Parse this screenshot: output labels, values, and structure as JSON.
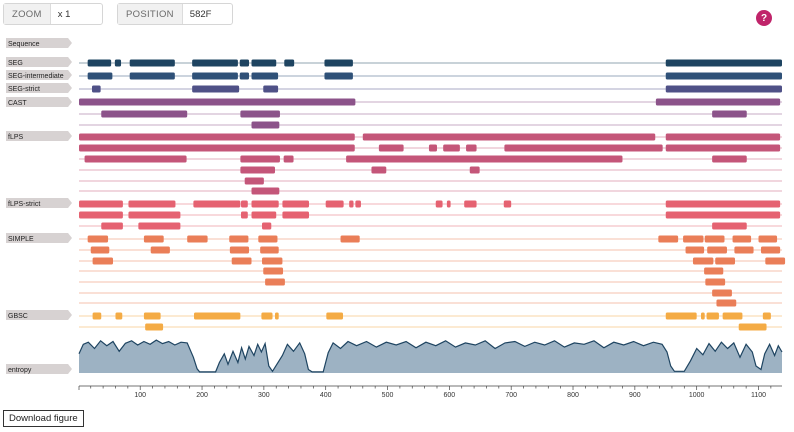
{
  "controls": {
    "zoom": {
      "label": "ZOOM",
      "value": "x 1"
    },
    "position": {
      "label": "POSITION",
      "value": "582F"
    }
  },
  "help": {
    "label": "?"
  },
  "download": {
    "label": "Download figure"
  },
  "axis": {
    "min": 1,
    "max": 1138,
    "ticks": [
      100,
      200,
      300,
      400,
      500,
      600,
      700,
      800,
      900,
      1000,
      1100
    ]
  },
  "tracks": [
    {
      "label": "Sequence",
      "rows": []
    },
    {
      "label": "SEG",
      "color": "#1e4461",
      "rows": [
        [
          [
            15,
            53
          ],
          [
            59,
            69
          ],
          [
            83,
            156
          ],
          [
            184,
            258
          ],
          [
            261,
            276
          ],
          [
            280,
            320
          ],
          [
            333,
            349
          ],
          [
            398,
            444
          ],
          [
            950,
            1138
          ]
        ]
      ]
    },
    {
      "label": "SEG-intermediate",
      "color": "#2f5178",
      "rows": [
        [
          [
            15,
            55
          ],
          [
            83,
            156
          ],
          [
            184,
            258
          ],
          [
            261,
            276
          ],
          [
            280,
            323
          ],
          [
            398,
            444
          ],
          [
            950,
            1138
          ]
        ]
      ]
    },
    {
      "label": "SEG-strict",
      "color": "#4f5187",
      "rows": [
        [
          [
            22,
            36
          ],
          [
            184,
            260
          ],
          [
            299,
            323
          ],
          [
            950,
            1138
          ]
        ]
      ]
    },
    {
      "label": "CAST",
      "color": "#8c538a",
      "rows": [
        [
          [
            1,
            448
          ],
          [
            934,
            1135
          ]
        ],
        [
          [
            37,
            176
          ],
          [
            262,
            326
          ],
          [
            1025,
            1081
          ]
        ],
        [
          [
            280,
            325
          ]
        ]
      ]
    },
    {
      "label": "fLPS",
      "color": "#c45679",
      "rows": [
        [
          [
            1,
            447
          ],
          [
            460,
            933
          ],
          [
            950,
            1135
          ]
        ],
        [
          [
            1,
            447
          ],
          [
            486,
            526
          ],
          [
            567,
            580
          ],
          [
            590,
            617
          ],
          [
            627,
            644
          ],
          [
            689,
            945
          ],
          [
            950,
            1135
          ]
        ],
        [
          [
            10,
            175
          ],
          [
            262,
            326
          ],
          [
            332,
            348
          ],
          [
            433,
            880
          ],
          [
            1025,
            1081
          ]
        ],
        [
          [
            262,
            318
          ],
          [
            474,
            498
          ],
          [
            633,
            649
          ]
        ],
        [
          [
            269,
            300
          ]
        ],
        [
          [
            280,
            325
          ]
        ]
      ]
    },
    {
      "label": "fLPS-strict",
      "color": "#e56271",
      "rows": [
        [
          [
            1,
            72
          ],
          [
            81,
            157
          ],
          [
            186,
            262
          ],
          [
            263,
            274
          ],
          [
            280,
            324
          ],
          [
            330,
            373
          ],
          [
            400,
            429
          ],
          [
            438,
            445
          ],
          [
            448,
            457
          ],
          [
            578,
            589
          ],
          [
            596,
            602
          ],
          [
            624,
            644
          ],
          [
            688,
            700
          ],
          [
            950,
            1135
          ]
        ],
        [
          [
            1,
            72
          ],
          [
            81,
            165
          ],
          [
            263,
            274
          ],
          [
            280,
            320
          ],
          [
            330,
            373
          ],
          [
            950,
            1135
          ]
        ],
        [
          [
            37,
            72
          ],
          [
            97,
            165
          ],
          [
            297,
            312
          ],
          [
            1025,
            1081
          ]
        ]
      ]
    },
    {
      "label": "SIMPLE",
      "color": "#ea7e58",
      "rows": [
        [
          [
            15,
            48
          ],
          [
            106,
            138
          ],
          [
            176,
            209
          ],
          [
            244,
            275
          ],
          [
            291,
            322
          ],
          [
            424,
            455
          ],
          [
            938,
            970
          ],
          [
            978,
            1011
          ],
          [
            1013,
            1045
          ],
          [
            1058,
            1088
          ],
          [
            1100,
            1130
          ]
        ],
        [
          [
            20,
            50
          ],
          [
            117,
            148
          ],
          [
            245,
            276
          ],
          [
            294,
            324
          ],
          [
            982,
            1012
          ],
          [
            1017,
            1049
          ],
          [
            1061,
            1092
          ],
          [
            1104,
            1135
          ]
        ],
        [
          [
            23,
            56
          ],
          [
            248,
            280
          ],
          [
            297,
            330
          ],
          [
            994,
            1027
          ],
          [
            1030,
            1062
          ],
          [
            1111,
            1143
          ]
        ],
        [
          [
            299,
            331
          ],
          [
            1012,
            1043
          ]
        ],
        [
          [
            302,
            334
          ],
          [
            1014,
            1046
          ]
        ],
        [
          [
            1025,
            1057
          ]
        ],
        [
          [
            1032,
            1064
          ]
        ]
      ]
    },
    {
      "label": "GBSC",
      "color": "#f4ab45",
      "rows": [
        [
          [
            23,
            37
          ],
          [
            60,
            71
          ],
          [
            106,
            133
          ],
          [
            187,
            262
          ],
          [
            296,
            314
          ],
          [
            318,
            324
          ],
          [
            401,
            428
          ],
          [
            950,
            1000
          ],
          [
            1007,
            1013
          ],
          [
            1016,
            1036
          ],
          [
            1042,
            1074
          ],
          [
            1107,
            1120
          ]
        ],
        [
          [
            108,
            137
          ],
          [
            1068,
            1113
          ]
        ]
      ]
    }
  ],
  "entropy": {
    "label": "entropy",
    "color": "#1e4461",
    "fill": "#9db2c3",
    "points": [
      [
        1,
        0.55
      ],
      [
        8,
        0.82
      ],
      [
        16,
        0.88
      ],
      [
        26,
        0.7
      ],
      [
        36,
        0.92
      ],
      [
        46,
        0.78
      ],
      [
        56,
        0.9
      ],
      [
        66,
        0.62
      ],
      [
        76,
        0.85
      ],
      [
        86,
        0.92
      ],
      [
        96,
        0.8
      ],
      [
        106,
        0.9
      ],
      [
        116,
        0.82
      ],
      [
        126,
        0.94
      ],
      [
        136,
        0.84
      ],
      [
        146,
        0.9
      ],
      [
        156,
        0.8
      ],
      [
        166,
        0.88
      ],
      [
        176,
        0.86
      ],
      [
        186,
        0.45
      ],
      [
        192,
        0.12
      ],
      [
        196,
        0.03
      ],
      [
        222,
        0.03
      ],
      [
        228,
        0.3
      ],
      [
        236,
        0.55
      ],
      [
        242,
        0.25
      ],
      [
        250,
        0.62
      ],
      [
        258,
        0.3
      ],
      [
        264,
        0.72
      ],
      [
        270,
        0.4
      ],
      [
        276,
        0.76
      ],
      [
        284,
        0.5
      ],
      [
        290,
        0.82
      ],
      [
        296,
        0.6
      ],
      [
        302,
        0.84
      ],
      [
        308,
        0.2
      ],
      [
        314,
        0.05
      ],
      [
        330,
        0.5
      ],
      [
        338,
        0.82
      ],
      [
        348,
        0.62
      ],
      [
        358,
        0.86
      ],
      [
        366,
        0.55
      ],
      [
        372,
        0.1
      ],
      [
        378,
        0.03
      ],
      [
        396,
        0.03
      ],
      [
        404,
        0.58
      ],
      [
        412,
        0.86
      ],
      [
        424,
        0.7
      ],
      [
        436,
        0.9
      ],
      [
        450,
        0.78
      ],
      [
        466,
        0.9
      ],
      [
        482,
        0.74
      ],
      [
        498,
        0.88
      ],
      [
        514,
        0.8
      ],
      [
        530,
        0.9
      ],
      [
        546,
        0.72
      ],
      [
        562,
        0.88
      ],
      [
        578,
        0.78
      ],
      [
        594,
        0.92
      ],
      [
        610,
        0.74
      ],
      [
        626,
        0.86
      ],
      [
        642,
        0.8
      ],
      [
        658,
        0.92
      ],
      [
        674,
        0.7
      ],
      [
        690,
        0.86
      ],
      [
        706,
        0.9
      ],
      [
        722,
        0.76
      ],
      [
        738,
        0.88
      ],
      [
        754,
        0.8
      ],
      [
        770,
        0.92
      ],
      [
        786,
        0.74
      ],
      [
        802,
        0.86
      ],
      [
        818,
        0.82
      ],
      [
        834,
        0.92
      ],
      [
        850,
        0.72
      ],
      [
        866,
        0.88
      ],
      [
        882,
        0.8
      ],
      [
        898,
        0.9
      ],
      [
        914,
        0.78
      ],
      [
        930,
        0.88
      ],
      [
        944,
        0.82
      ],
      [
        952,
        0.6
      ],
      [
        958,
        0.2
      ],
      [
        964,
        0.05
      ],
      [
        980,
        0.05
      ],
      [
        990,
        0.35
      ],
      [
        1000,
        0.7
      ],
      [
        1010,
        0.52
      ],
      [
        1020,
        0.84
      ],
      [
        1030,
        0.62
      ],
      [
        1040,
        0.88
      ],
      [
        1050,
        0.7
      ],
      [
        1060,
        0.86
      ],
      [
        1070,
        0.45
      ],
      [
        1080,
        0.82
      ],
      [
        1090,
        0.6
      ],
      [
        1096,
        0.2
      ],
      [
        1104,
        0.1
      ],
      [
        1110,
        0.55
      ],
      [
        1118,
        0.82
      ],
      [
        1126,
        0.5
      ],
      [
        1132,
        0.78
      ],
      [
        1138,
        0.6
      ]
    ]
  }
}
